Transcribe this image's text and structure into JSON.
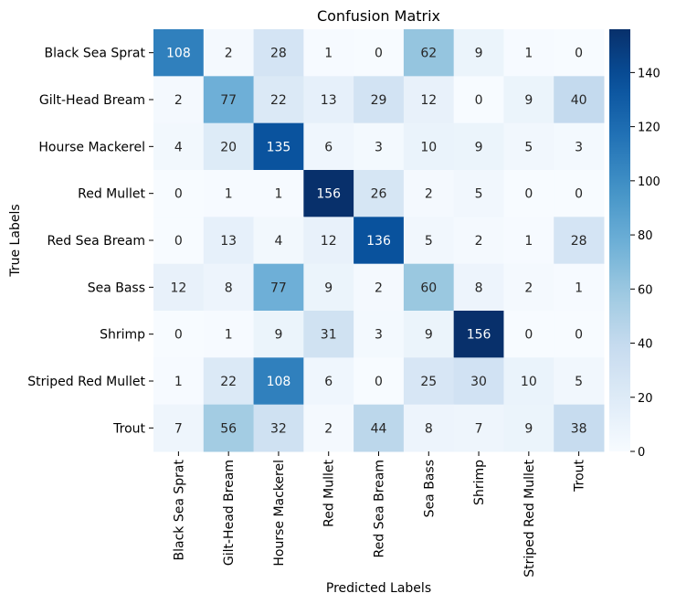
{
  "chart_data": {
    "type": "heatmap",
    "title": "Confusion Matrix",
    "xlabel": "Predicted Labels",
    "ylabel": "True Labels",
    "categories": [
      "Black Sea Sprat",
      "Gilt-Head Bream",
      "Hourse Mackerel",
      "Red Mullet",
      "Red Sea Bream",
      "Sea Bass",
      "Shrimp",
      "Striped Red Mullet",
      "Trout"
    ],
    "matrix": [
      [
        108,
        2,
        28,
        1,
        0,
        62,
        9,
        1,
        0
      ],
      [
        2,
        77,
        22,
        13,
        29,
        12,
        0,
        9,
        40
      ],
      [
        4,
        20,
        135,
        6,
        3,
        10,
        9,
        5,
        3
      ],
      [
        0,
        1,
        1,
        156,
        26,
        2,
        5,
        0,
        0
      ],
      [
        0,
        13,
        4,
        12,
        136,
        5,
        2,
        1,
        28
      ],
      [
        12,
        8,
        77,
        9,
        2,
        60,
        8,
        2,
        1
      ],
      [
        0,
        1,
        9,
        31,
        3,
        9,
        156,
        0,
        0
      ],
      [
        1,
        22,
        108,
        6,
        0,
        25,
        30,
        10,
        5
      ],
      [
        7,
        56,
        32,
        2,
        44,
        8,
        7,
        9,
        38
      ]
    ],
    "vmin": 0,
    "vmax": 156,
    "colormap": "Blues",
    "colorbar_ticks": [
      0,
      20,
      40,
      60,
      80,
      100,
      120,
      140
    ],
    "grid": false
  }
}
